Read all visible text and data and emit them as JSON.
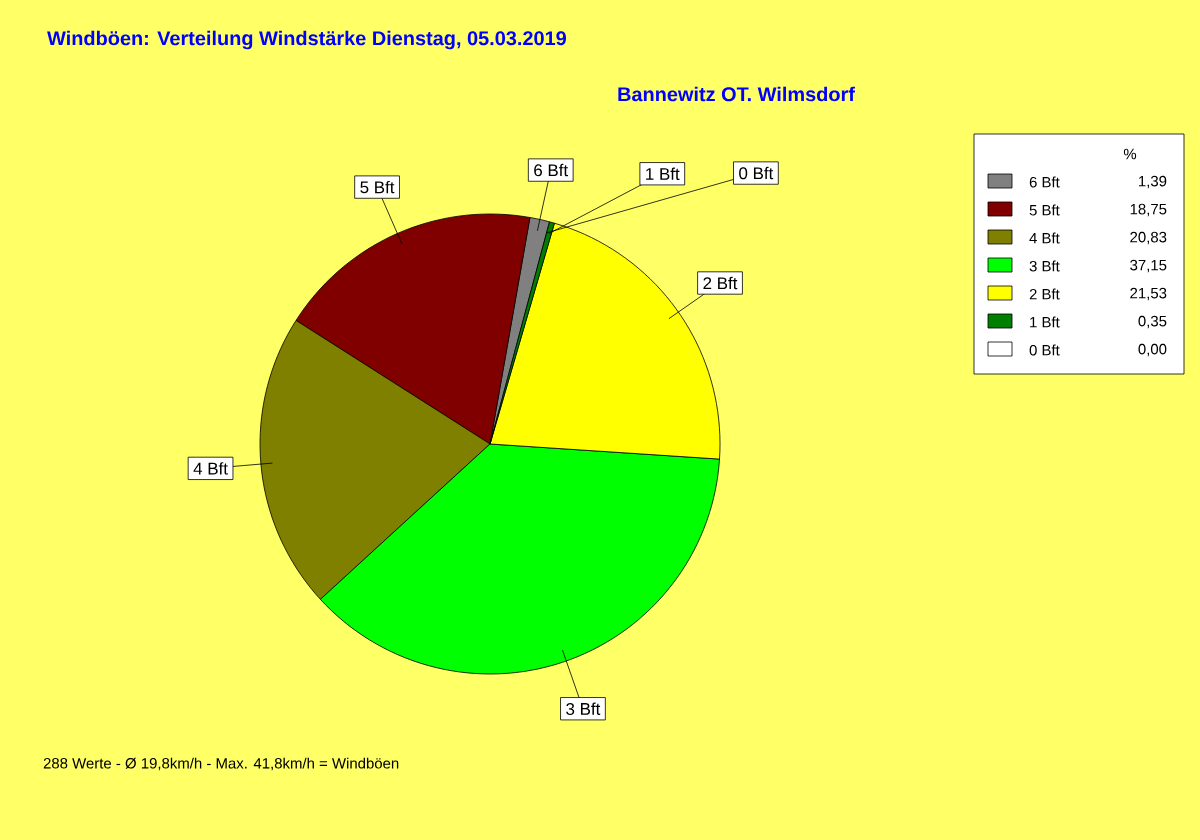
{
  "chart_data": {
    "type": "pie",
    "title": "Windböen: Verteilung Windstärke  Dienstag, 05.03.2019",
    "subtitle": "Bannewitz OT. Wilmsdorf",
    "legend_title": "%",
    "legend": "top right",
    "categories": [
      "6 Bft",
      "5 Bft",
      "4 Bft",
      "3 Bft",
      "2 Bft",
      "1 Bft",
      "0 Bft"
    ],
    "values": [
      1.39,
      18.75,
      20.83,
      37.15,
      21.53,
      0.35,
      0.0
    ],
    "value_labels": [
      "1,39",
      "18,75",
      "20,83",
      "37,15",
      "21,53",
      "0,35",
      "0,00"
    ],
    "colors": [
      "#808080",
      "#800000",
      "#808000",
      "#00ff00",
      "#ffff00",
      "#008000",
      "#ffffff"
    ],
    "annotations": [
      "288 Werte   -   Ø 19,8km/h  -  Max. 41,8km/h = Windböen"
    ]
  }
}
